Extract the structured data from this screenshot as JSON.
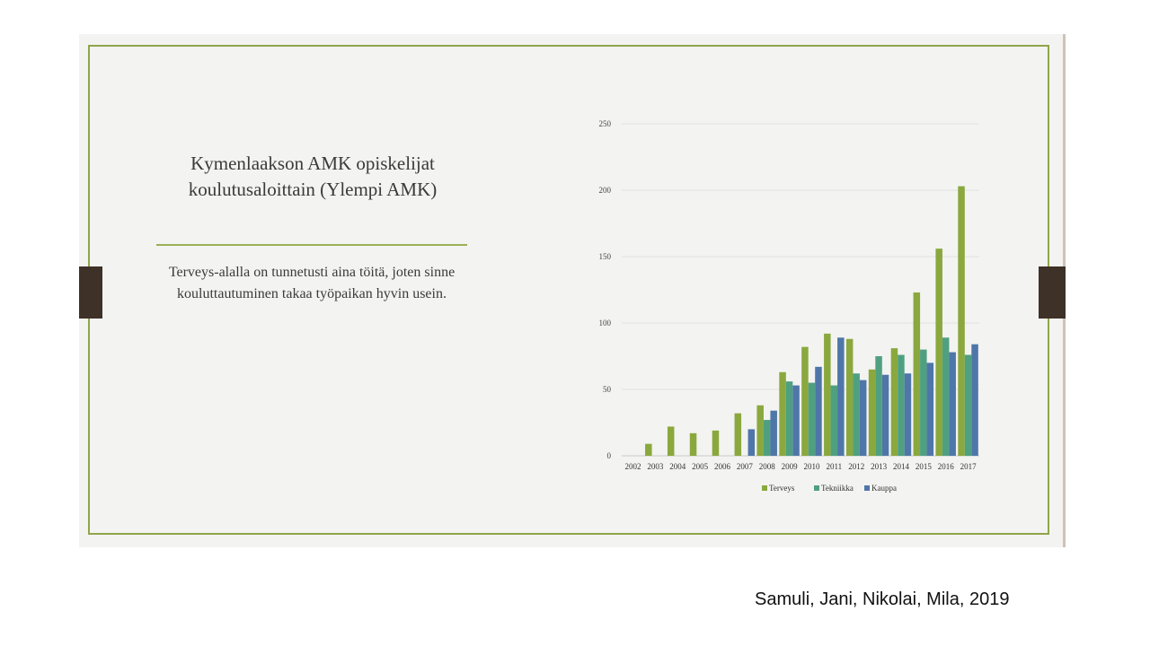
{
  "slide": {
    "title": "Kymenlaakson AMK opiskelijat koulutusaloittain (Ylempi AMK)",
    "body": "Terveys-alalla on tunnetusti aina töitä, joten sinne kouluttautuminen takaa työpaikan hyvin usein.",
    "credit": "Samuli, Jani, Nikolai, Mila, 2019"
  },
  "colors": {
    "frame": "#8fa64a",
    "tab": "#3d3128"
  },
  "chart_data": {
    "type": "bar",
    "categories": [
      "2002",
      "2003",
      "2004",
      "2005",
      "2006",
      "2007",
      "2008",
      "2009",
      "2010",
      "2011",
      "2012",
      "2013",
      "2014",
      "2015",
      "2016",
      "2017"
    ],
    "series": [
      {
        "name": "Terveys",
        "color": "#8aa83e",
        "values": [
          0,
          9,
          22,
          17,
          19,
          32,
          38,
          63,
          82,
          92,
          88,
          65,
          81,
          123,
          156,
          203
        ]
      },
      {
        "name": "Tekniikka",
        "color": "#4fa081",
        "values": [
          0,
          0,
          0,
          0,
          0,
          0,
          27,
          56,
          55,
          53,
          62,
          75,
          76,
          80,
          89,
          76
        ]
      },
      {
        "name": "Kauppa",
        "color": "#4f76a8",
        "values": [
          0,
          0,
          0,
          0,
          0,
          20,
          34,
          53,
          67,
          89,
          57,
          61,
          62,
          70,
          78,
          84
        ]
      }
    ],
    "yticks": [
      "0",
      "50",
      "100",
      "150",
      "200",
      "250"
    ],
    "ylim": [
      0,
      250
    ],
    "grid": true,
    "legend": "bottom"
  }
}
